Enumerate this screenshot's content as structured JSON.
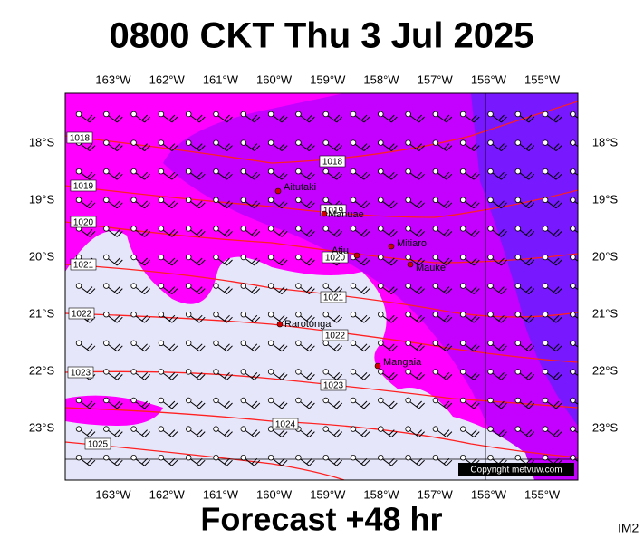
{
  "title": "0800 CKT Thu 3 Jul 2025",
  "footer": "Forecast +48 hr",
  "corner_label": "IM2",
  "copyright": "Copyright metvuw.com",
  "longitudes": [
    "163°W",
    "162°W",
    "161°W",
    "160°W",
    "159°W",
    "158°W",
    "157°W",
    "156°W",
    "155°W"
  ],
  "latitudes": [
    "18°S",
    "19°S",
    "20°S",
    "21°S",
    "22°S",
    "23°S"
  ],
  "isobar_labels": [
    "1018",
    "1019",
    "1020",
    "1021",
    "1022",
    "1023",
    "1018",
    "1019",
    "1020",
    "1021",
    "1022",
    "1023",
    "1024",
    "1025"
  ],
  "islands": [
    "Aitutaki",
    "Manuae",
    "Atiu",
    "Mitiaro",
    "Mauke",
    "Rarotonga",
    "Mangaia"
  ]
}
